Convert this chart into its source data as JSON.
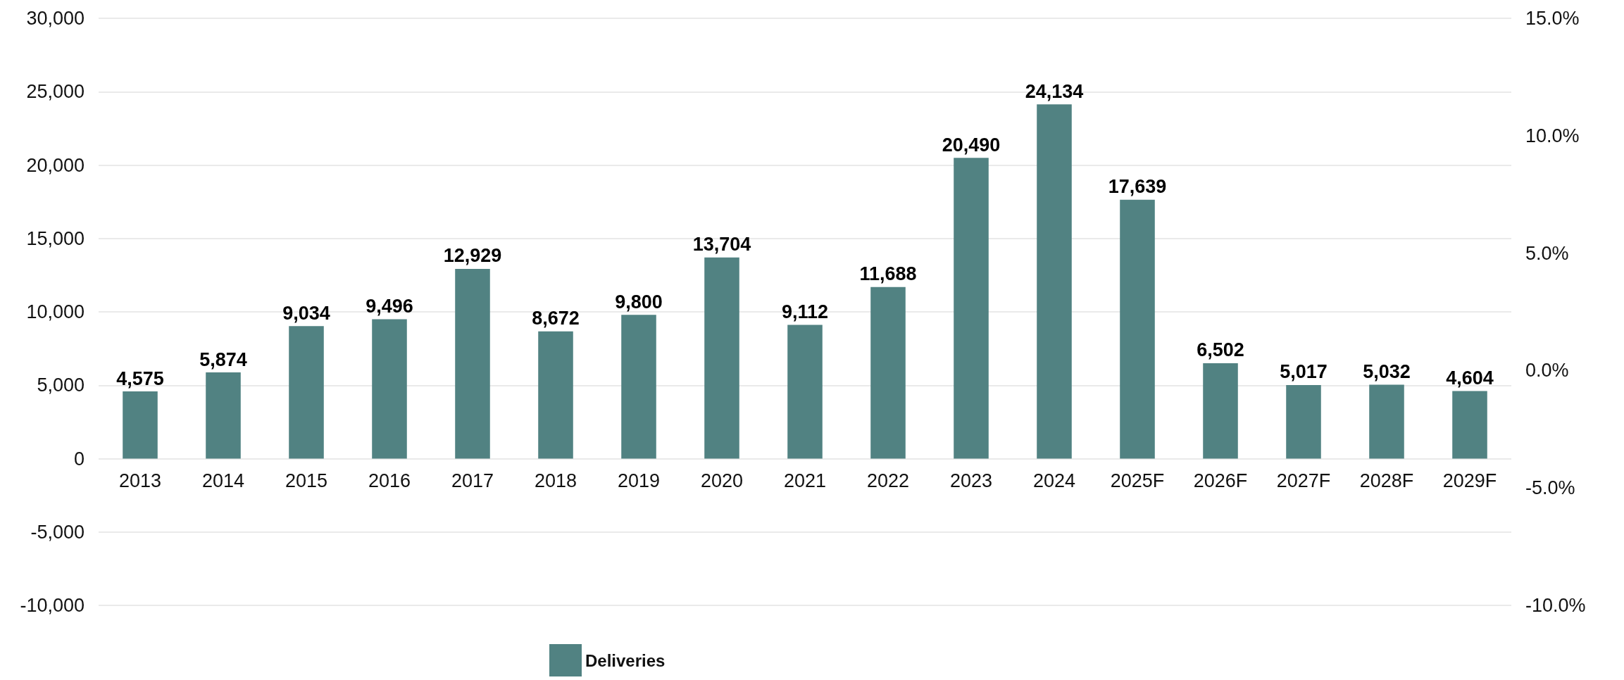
{
  "chart_data": {
    "type": "bar",
    "categories": [
      "2013",
      "2014",
      "2015",
      "2016",
      "2017",
      "2018",
      "2019",
      "2020",
      "2021",
      "2022",
      "2023",
      "2024",
      "2025F",
      "2026F",
      "2027F",
      "2028F",
      "2029F"
    ],
    "series": [
      {
        "name": "Deliveries",
        "color": "#518282",
        "values": [
          4575,
          5874,
          9034,
          9496,
          12929,
          8672,
          9800,
          13704,
          9112,
          11688,
          20490,
          24134,
          17639,
          6502,
          5017,
          5032,
          4604
        ],
        "value_labels": [
          "4,575",
          "5,874",
          "9,034",
          "9,496",
          "12,929",
          "8,672",
          "9,800",
          "13,704",
          "9,112",
          "11,688",
          "20,490",
          "24,134",
          "17,639",
          "6,502",
          "5,017",
          "5,032",
          "4,604"
        ]
      }
    ],
    "ylim": [
      -10000,
      30000
    ],
    "yticks": [
      {
        "value": -10000,
        "label": "-10,000"
      },
      {
        "value": -5000,
        "label": "-5,000"
      },
      {
        "value": 0,
        "label": "0"
      },
      {
        "value": 5000,
        "label": "5,000"
      },
      {
        "value": 10000,
        "label": "10,000"
      },
      {
        "value": 15000,
        "label": "15,000"
      },
      {
        "value": 20000,
        "label": "20,000"
      },
      {
        "value": 25000,
        "label": "25,000"
      },
      {
        "value": 30000,
        "label": "30,000"
      }
    ],
    "y2lim": [
      -10,
      15
    ],
    "y2ticks": [
      {
        "value": -10,
        "label": "-10.0%"
      },
      {
        "value": -5,
        "label": "-5.0%"
      },
      {
        "value": 0,
        "label": "0.0%"
      },
      {
        "value": 5,
        "label": "5.0%"
      },
      {
        "value": 10,
        "label": "10.0%"
      },
      {
        "value": 15,
        "label": "15.0%"
      }
    ],
    "grid": "y",
    "legend": "bottom"
  }
}
